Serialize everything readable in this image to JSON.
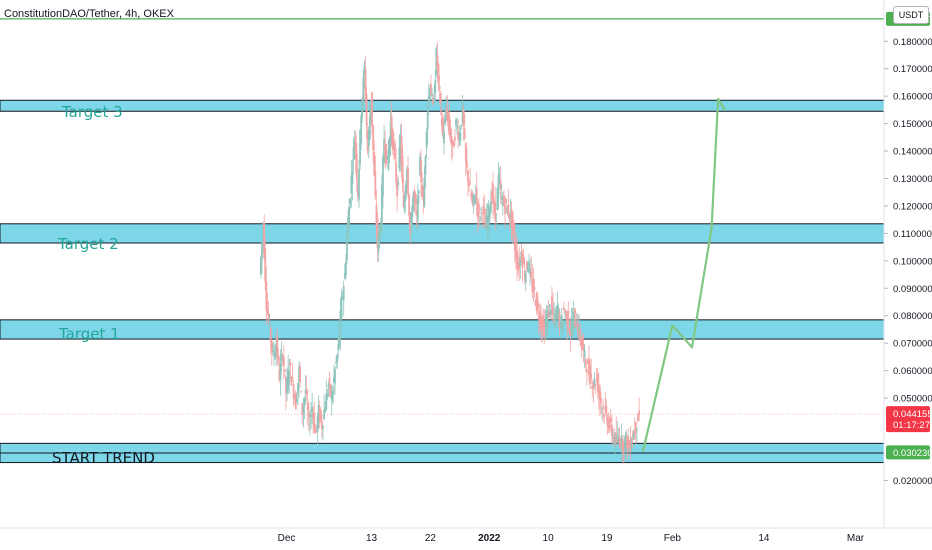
{
  "chart_data": {
    "type": "candlestick",
    "title": "ConstitutionDAO/Tether, 4h, OKEX",
    "unit": "USDT",
    "y_ticks": [
      "0.180000",
      "0.170000",
      "0.160000",
      "0.150000",
      "0.140000",
      "0.130000",
      "0.120000",
      "0.110000",
      "0.100000",
      "0.090000",
      "0.080000",
      "0.070000",
      "0.060000",
      "0.050000",
      "0.020000"
    ],
    "y_tick_values": [
      0.18,
      0.17,
      0.16,
      0.15,
      0.14,
      0.13,
      0.12,
      0.11,
      0.1,
      0.09,
      0.08,
      0.07,
      0.06,
      0.05,
      0.02
    ],
    "ylim": [
      0.0155,
      0.1995
    ],
    "x_ticks": [
      "Dec",
      "13",
      "22",
      "2022",
      "10",
      "19",
      "Feb",
      "14",
      "Mar"
    ],
    "x_tick_days": [
      5,
      18,
      27,
      36,
      45,
      54,
      64,
      78,
      92
    ],
    "xlim": [
      -38,
      101
    ],
    "price_labels": {
      "top_line": {
        "text": "0.188160",
        "value": 0.18816,
        "color": "#4caf50"
      },
      "current": {
        "text": "0.044155",
        "value": 0.044155,
        "countdown": "01:17:27",
        "color": "#f23645"
      },
      "bottom_line": {
        "text": "0.030230",
        "value": 0.03023,
        "color": "#4caf50"
      }
    },
    "zones": [
      {
        "name": "Target 3",
        "low": 0.1545,
        "high": 0.1585
      },
      {
        "name": "Target 2",
        "low": 0.1065,
        "high": 0.1135
      },
      {
        "name": "Target 1",
        "low": 0.0715,
        "high": 0.0785
      },
      {
        "name": "START TREND",
        "low": 0.0265,
        "high": 0.0335
      }
    ],
    "annotations": [
      "Target 3",
      "Target 2",
      "Target 1",
      "START TREND"
    ],
    "projection": {
      "points": [
        [
          59.5,
          0.0305
        ],
        [
          64,
          0.0765
        ],
        [
          67,
          0.0685
        ],
        [
          70,
          0.112
        ],
        [
          71,
          0.159
        ],
        [
          72,
          0.155
        ]
      ],
      "color": "#81c784"
    },
    "price_path": [
      [
        1,
        0.095
      ],
      [
        1.5,
        0.113
      ],
      [
        2,
        0.085
      ],
      [
        2.5,
        0.075
      ],
      [
        3,
        0.065
      ],
      [
        3.5,
        0.07
      ],
      [
        4,
        0.058
      ],
      [
        4.5,
        0.067
      ],
      [
        5,
        0.052
      ],
      [
        5.5,
        0.062
      ],
      [
        6,
        0.055
      ],
      [
        6.5,
        0.048
      ],
      [
        7,
        0.06
      ],
      [
        7.5,
        0.045
      ],
      [
        8,
        0.053
      ],
      [
        8.5,
        0.04
      ],
      [
        9,
        0.047
      ],
      [
        9.5,
        0.037
      ],
      [
        10,
        0.045
      ],
      [
        10.5,
        0.04
      ],
      [
        11,
        0.048
      ],
      [
        11.5,
        0.055
      ],
      [
        12,
        0.05
      ],
      [
        12.5,
        0.06
      ],
      [
        13,
        0.068
      ],
      [
        13.5,
        0.085
      ],
      [
        14,
        0.095
      ],
      [
        14.5,
        0.115
      ],
      [
        15,
        0.13
      ],
      [
        15.5,
        0.145
      ],
      [
        16,
        0.125
      ],
      [
        16.5,
        0.155
      ],
      [
        17,
        0.17
      ],
      [
        17.5,
        0.14
      ],
      [
        18,
        0.16
      ],
      [
        18.5,
        0.13
      ],
      [
        19,
        0.105
      ],
      [
        19.5,
        0.115
      ],
      [
        20,
        0.145
      ],
      [
        20.5,
        0.135
      ],
      [
        21,
        0.15
      ],
      [
        21.5,
        0.14
      ],
      [
        22,
        0.125
      ],
      [
        22.5,
        0.145
      ],
      [
        23,
        0.118
      ],
      [
        23.5,
        0.135
      ],
      [
        24,
        0.11
      ],
      [
        24.5,
        0.125
      ],
      [
        25,
        0.115
      ],
      [
        25.5,
        0.135
      ],
      [
        26,
        0.12
      ],
      [
        26.5,
        0.15
      ],
      [
        27,
        0.165
      ],
      [
        27.5,
        0.155
      ],
      [
        28,
        0.175
      ],
      [
        28.5,
        0.16
      ],
      [
        29,
        0.145
      ],
      [
        29.5,
        0.155
      ],
      [
        30,
        0.148
      ],
      [
        30.5,
        0.14
      ],
      [
        31,
        0.15
      ],
      [
        31.5,
        0.145
      ],
      [
        32,
        0.155
      ],
      [
        32.5,
        0.135
      ],
      [
        33,
        0.128
      ],
      [
        33.5,
        0.12
      ],
      [
        34,
        0.125
      ],
      [
        34.5,
        0.115
      ],
      [
        35,
        0.12
      ],
      [
        35.5,
        0.112
      ],
      [
        36,
        0.118
      ],
      [
        36.5,
        0.125
      ],
      [
        37,
        0.115
      ],
      [
        37.5,
        0.13
      ],
      [
        38,
        0.122
      ],
      [
        38.5,
        0.12
      ],
      [
        39,
        0.118
      ],
      [
        39.5,
        0.115
      ],
      [
        40,
        0.105
      ],
      [
        40.5,
        0.097
      ],
      [
        41,
        0.103
      ],
      [
        41.5,
        0.095
      ],
      [
        42,
        0.1
      ],
      [
        42.5,
        0.092
      ],
      [
        43,
        0.088
      ],
      [
        43.5,
        0.082
      ],
      [
        44,
        0.078
      ],
      [
        44.5,
        0.075
      ],
      [
        45,
        0.08
      ],
      [
        45.5,
        0.084
      ],
      [
        46,
        0.078
      ],
      [
        46.5,
        0.083
      ],
      [
        47,
        0.076
      ],
      [
        47.5,
        0.082
      ],
      [
        48,
        0.079
      ],
      [
        48.5,
        0.074
      ],
      [
        49,
        0.08
      ],
      [
        49.5,
        0.077
      ],
      [
        50,
        0.072
      ],
      [
        50.5,
        0.066
      ],
      [
        51,
        0.062
      ],
      [
        51.5,
        0.058
      ],
      [
        52,
        0.055
      ],
      [
        52.5,
        0.057
      ],
      [
        53,
        0.05
      ],
      [
        53.5,
        0.046
      ],
      [
        54,
        0.043
      ],
      [
        54.5,
        0.04
      ],
      [
        55,
        0.036
      ],
      [
        55.5,
        0.034
      ],
      [
        56,
        0.036
      ],
      [
        56.5,
        0.033
      ],
      [
        57,
        0.035
      ],
      [
        57.5,
        0.032
      ],
      [
        58,
        0.036
      ],
      [
        58.5,
        0.04
      ],
      [
        59,
        0.044
      ]
    ]
  }
}
